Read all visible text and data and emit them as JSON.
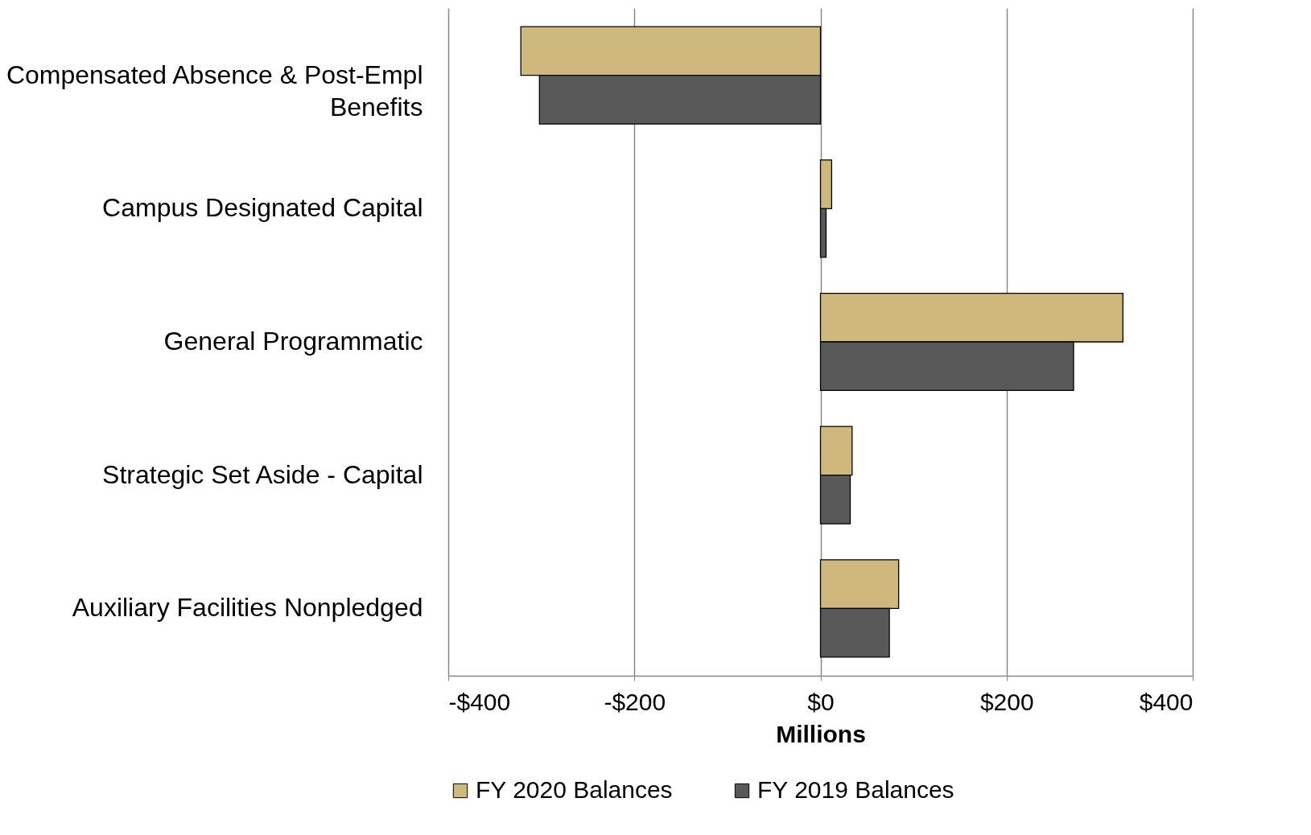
{
  "chart_data": {
    "type": "bar",
    "orientation": "horizontal",
    "xlabel": "Millions",
    "categories": [
      "Compensated Absence & Post-Empl Benefits",
      "Campus Designated Capital",
      "General Programmatic",
      "Strategic Set Aside - Capital",
      "Auxiliary Facilities Nonpledged"
    ],
    "series": [
      {
        "name": "FY 2020 Balances",
        "color": "#cfb87c",
        "values": [
          -322,
          12,
          325,
          34,
          84
        ]
      },
      {
        "name": "FY 2019 Balances",
        "color": "#595959",
        "values": [
          -302,
          6,
          272,
          32,
          74
        ]
      }
    ],
    "xlim": [
      -400,
      400
    ],
    "xticks": [
      {
        "value": -400,
        "label": "-$400"
      },
      {
        "value": -200,
        "label": "-$200"
      },
      {
        "value": 0,
        "label": "$0"
      },
      {
        "value": 200,
        "label": "$200"
      },
      {
        "value": 400,
        "label": "$400"
      }
    ],
    "grid": "x",
    "legend": "bottom"
  }
}
